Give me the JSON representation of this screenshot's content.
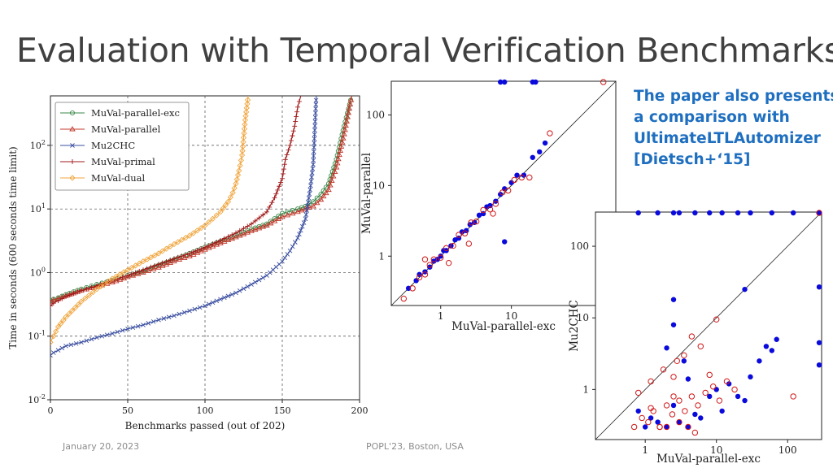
{
  "title": "Evaluation with Temporal Verification Benchmarks",
  "note_lines": [
    "The paper also presents",
    "a comparison with",
    "UltimateLTLAutomizer",
    "[Dietsch+‘15]"
  ],
  "footer": {
    "date": "January 20, 2023",
    "venue": "POPL'23, Boston, USA"
  },
  "colors": {
    "green": "#3a8a4a",
    "red": "#c0392b",
    "blue": "#3b4fa0",
    "darkred": "#a01818",
    "orange": "#f0a640",
    "scatter_blue": "#0a0adc",
    "scatter_red": "#d01818"
  },
  "chart_data": [
    {
      "type": "line",
      "xlabel": "Benchmarks passed (out of 202)",
      "ylabel": "Time in seconds (600 seconds time limit)",
      "xlim": [
        0,
        200
      ],
      "ylim": [
        0.01,
        600
      ],
      "yscale": "log",
      "xticks": [
        "0",
        "50",
        "100",
        "150",
        "200"
      ],
      "yticks": [
        "10^-2",
        "10^-1",
        "10^0",
        "10^1",
        "10^2"
      ],
      "grid": true,
      "legend_position": "top-left",
      "series": [
        {
          "name": "MuVal-parallel-exc",
          "marker": "circle",
          "x": [
            0,
            2,
            5,
            10,
            20,
            30,
            40,
            50,
            60,
            70,
            80,
            90,
            100,
            110,
            120,
            130,
            140,
            150,
            160,
            165,
            170,
            175,
            180,
            185,
            190,
            195
          ],
          "y": [
            0.36,
            0.38,
            0.4,
            0.45,
            0.55,
            0.65,
            0.75,
            0.9,
            1.05,
            1.3,
            1.6,
            2.0,
            2.5,
            3.1,
            3.8,
            4.8,
            5.8,
            8.5,
            10,
            11,
            13,
            17,
            25,
            60,
            200,
            600
          ]
        },
        {
          "name": "MuVal-parallel",
          "marker": "triangle",
          "x": [
            0,
            2,
            5,
            10,
            20,
            30,
            40,
            50,
            60,
            70,
            80,
            90,
            100,
            110,
            120,
            130,
            140,
            150,
            160,
            165,
            170,
            175,
            180,
            185,
            190,
            195
          ],
          "y": [
            0.35,
            0.37,
            0.39,
            0.43,
            0.52,
            0.6,
            0.7,
            0.85,
            1.0,
            1.2,
            1.5,
            1.8,
            2.3,
            2.9,
            3.6,
            4.5,
            5.5,
            7.5,
            9,
            10,
            11,
            14,
            20,
            45,
            150,
            600
          ]
        },
        {
          "name": "Mu2CHC",
          "marker": "x",
          "x": [
            0,
            2,
            5,
            10,
            20,
            30,
            40,
            50,
            60,
            70,
            80,
            90,
            100,
            110,
            120,
            130,
            140,
            150,
            155,
            160,
            165,
            168,
            170,
            172
          ],
          "y": [
            0.05,
            0.055,
            0.06,
            0.07,
            0.08,
            0.095,
            0.11,
            0.13,
            0.15,
            0.18,
            0.21,
            0.25,
            0.3,
            0.38,
            0.48,
            0.65,
            0.9,
            1.5,
            2.2,
            3.5,
            7,
            20,
            50,
            600
          ]
        },
        {
          "name": "MuVal-primal",
          "marker": "plus",
          "x": [
            0,
            2,
            5,
            10,
            20,
            30,
            40,
            50,
            60,
            70,
            80,
            90,
            100,
            110,
            120,
            130,
            140,
            145,
            150,
            152,
            155,
            158,
            160,
            162
          ],
          "y": [
            0.3,
            0.33,
            0.36,
            0.42,
            0.52,
            0.62,
            0.75,
            0.9,
            1.1,
            1.35,
            1.65,
            2.0,
            2.5,
            3.2,
            4.2,
            5.8,
            9,
            15,
            30,
            60,
            100,
            200,
            400,
            600
          ]
        },
        {
          "name": "MuVal-dual",
          "marker": "diamond",
          "x": [
            0,
            2,
            5,
            10,
            20,
            30,
            40,
            50,
            60,
            70,
            80,
            90,
            100,
            105,
            110,
            115,
            118,
            120,
            122,
            124,
            126,
            128
          ],
          "y": [
            0.08,
            0.1,
            0.14,
            0.2,
            0.35,
            0.55,
            0.8,
            1.1,
            1.5,
            2.0,
            2.8,
            3.8,
            5.5,
            7,
            9,
            13,
            18,
            25,
            40,
            70,
            250,
            600
          ]
        }
      ]
    },
    {
      "type": "scatter",
      "xlabel": "MuVal-parallel-exc",
      "ylabel": "MuVal-parallel",
      "xscale": "log",
      "yscale": "log",
      "xlim": [
        0.2,
        300
      ],
      "ylim": [
        0.2,
        300
      ],
      "xticks": [
        "1",
        "10"
      ],
      "yticks": [
        "1",
        "10",
        "100"
      ],
      "diagonal": true,
      "series": [
        {
          "name": "",
          "color": "blue",
          "marker": "filled-circle",
          "x": [
            0.35,
            0.45,
            0.5,
            0.6,
            0.7,
            0.8,
            0.9,
            1.0,
            1.1,
            1.2,
            1.4,
            1.6,
            1.8,
            2.0,
            2.3,
            2.6,
            3.0,
            3.5,
            4.0,
            4.5,
            5.0,
            6.0,
            7.0,
            8.0,
            10,
            12,
            15,
            20,
            25,
            30,
            7,
            8,
            20,
            22,
            8
          ],
          "y": [
            0.35,
            0.45,
            0.55,
            0.6,
            0.7,
            0.85,
            0.9,
            1.0,
            1.2,
            1.2,
            1.4,
            1.7,
            1.8,
            2.2,
            2.3,
            2.8,
            3.0,
            3.8,
            4.0,
            5.0,
            5.2,
            6.0,
            7.5,
            9.0,
            11,
            14,
            14,
            25,
            30,
            40,
            300,
            300,
            300,
            300,
            1.6
          ]
        },
        {
          "name": "",
          "color": "red",
          "marker": "open-circle",
          "x": [
            0.3,
            0.4,
            0.5,
            0.6,
            0.7,
            0.8,
            1.0,
            1.2,
            1.5,
            1.8,
            2.2,
            2.7,
            3.2,
            4.0,
            5.0,
            6.0,
            7.5,
            9.0,
            11,
            14,
            18,
            35,
            200,
            0.6,
            1.3,
            2.5,
            5.5
          ],
          "y": [
            0.25,
            0.35,
            0.5,
            0.55,
            0.75,
            0.9,
            0.95,
            1.3,
            1.4,
            2.0,
            2.1,
            3.0,
            3.1,
            4.5,
            4.6,
            5.5,
            8.0,
            8.5,
            12,
            13,
            13,
            55,
            300,
            0.9,
            0.8,
            1.5,
            4.0
          ]
        }
      ]
    },
    {
      "type": "scatter",
      "xlabel": "MuVal-parallel-exc",
      "ylabel": "Mu2CHC",
      "xscale": "log",
      "yscale": "log",
      "xlim": [
        0.2,
        300
      ],
      "ylim": [
        0.2,
        300
      ],
      "xticks": [
        "1",
        "10",
        "100"
      ],
      "yticks": [
        "1",
        "10",
        "100"
      ],
      "diagonal": true,
      "series": [
        {
          "name": "",
          "color": "blue",
          "marker": "filled-circle",
          "x": [
            0.8,
            1.0,
            1.2,
            1.5,
            2.0,
            2.5,
            3.0,
            4.0,
            5.0,
            6.0,
            8.0,
            10,
            12,
            15,
            20,
            25,
            30,
            40,
            50,
            60,
            70,
            300,
            300,
            300,
            300,
            0.8,
            1.5,
            2.5,
            3.0,
            5.0,
            8,
            12,
            20,
            30,
            60,
            120,
            2.5,
            2.5,
            3.5,
            2.0,
            4.0,
            25
          ],
          "y": [
            0.5,
            0.3,
            0.4,
            0.35,
            0.3,
            0.6,
            0.35,
            0.3,
            0.45,
            0.4,
            0.8,
            1.0,
            0.5,
            1.2,
            0.8,
            0.7,
            1.5,
            2.5,
            4.0,
            3.5,
            5.0,
            300,
            27,
            4.5,
            2.2,
            300,
            300,
            300,
            300,
            300,
            300,
            300,
            300,
            300,
            300,
            300,
            18,
            8,
            2.5,
            3.8,
            1.4,
            25
          ]
        },
        {
          "name": "",
          "color": "red",
          "marker": "open-circle",
          "x": [
            0.7,
            0.9,
            1.1,
            1.3,
            1.6,
            2.0,
            2.4,
            3.0,
            3.6,
            4.5,
            5.5,
            7.0,
            9.0,
            11,
            14,
            18,
            0.8,
            1.2,
            1.8,
            2.5,
            3.5,
            4.5,
            6.0,
            8.0,
            10,
            120,
            300,
            1.2,
            1.6,
            2.0,
            3.0,
            4.0,
            5.0,
            2.5,
            2.8
          ],
          "y": [
            0.3,
            0.4,
            0.35,
            0.5,
            0.3,
            0.6,
            0.45,
            0.7,
            0.5,
            0.8,
            0.6,
            0.9,
            1.1,
            0.7,
            1.3,
            1.0,
            0.9,
            1.3,
            1.9,
            0.8,
            3.0,
            5.5,
            4.0,
            1.6,
            9.5,
            0.8,
            300,
            0.55,
            0.3,
            0.3,
            0.35,
            0.3,
            0.25,
            1.5,
            2.5
          ]
        }
      ]
    }
  ]
}
